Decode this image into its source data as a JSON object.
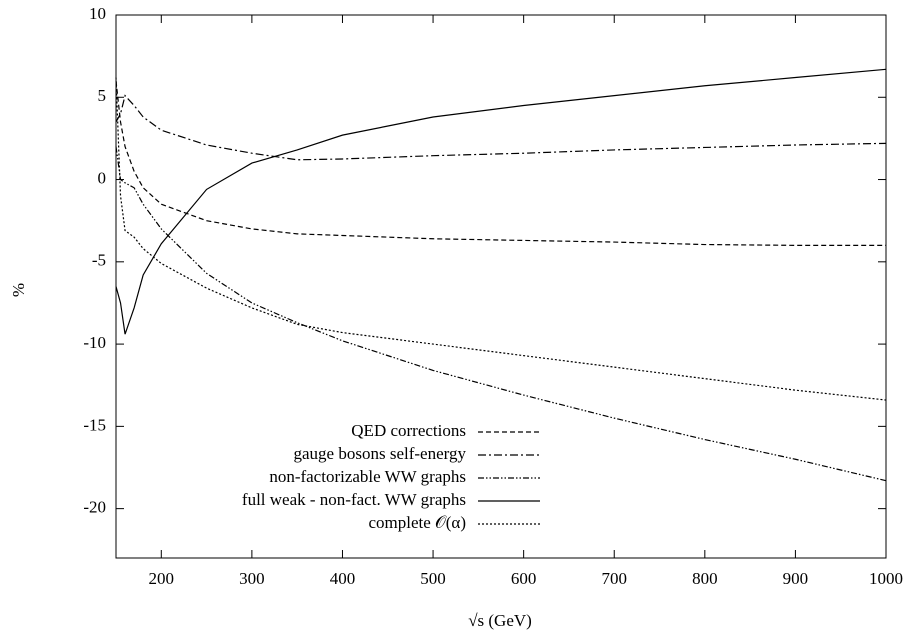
{
  "chart_data": {
    "type": "line",
    "x_label": "√s (GeV)",
    "y_label": "%",
    "x": [
      150,
      155,
      160,
      170,
      180,
      200,
      250,
      300,
      350,
      400,
      500,
      600,
      700,
      800,
      900,
      1000
    ],
    "series": [
      {
        "name": "QED corrections",
        "color": "#000000",
        "dash": "5,3",
        "values": [
          6,
          3.5,
          2,
          0.5,
          -0.5,
          -1.5,
          -2.5,
          -3.0,
          -3.3,
          -3.4,
          -3.6,
          -3.7,
          -3.8,
          -3.95,
          -4.0,
          -4.0
        ]
      },
      {
        "name": "gauge bosons self-energy",
        "color": "#000000",
        "dash": "8,3,2,3",
        "values": [
          3.5,
          4,
          5.1,
          4.5,
          3.8,
          3.0,
          2.1,
          1.6,
          1.2,
          1.25,
          1.45,
          1.6,
          1.8,
          1.95,
          2.1,
          2.2
        ]
      },
      {
        "name": "non-factorizable WW graphs",
        "color": "#000000",
        "dash": "6,2,1.5,2,1.5,2",
        "values": [
          2,
          0,
          -0.2,
          -0.5,
          -1.5,
          -3,
          -5.7,
          -7.5,
          -8.7,
          -9.8,
          -11.6,
          -13.1,
          -14.5,
          -15.8,
          -17.0,
          -18.3
        ]
      },
      {
        "name": "full weak - non-fact. WW graphs",
        "color": "#000000",
        "dash": "none",
        "values": [
          -6.5,
          -7.5,
          -9.4,
          -7.8,
          -5.8,
          -3.9,
          -0.6,
          1.0,
          1.8,
          2.7,
          3.8,
          4.5,
          5.1,
          5.7,
          6.2,
          6.7
        ]
      },
      {
        "name": "complete 𝒪(α)",
        "color": "#000000",
        "dash": "2,2",
        "values": [
          6.2,
          -1,
          -3.1,
          -3.5,
          -4.2,
          -5.1,
          -6.6,
          -7.8,
          -8.8,
          -9.3,
          -10.0,
          -10.7,
          -11.4,
          -12.1,
          -12.8,
          -13.4
        ]
      }
    ],
    "xlim": [
      150,
      1000
    ],
    "ylim": [
      -23,
      10
    ],
    "xticks": [
      200,
      300,
      400,
      500,
      600,
      700,
      800,
      900,
      1000
    ],
    "yticks": [
      -20,
      -15,
      -10,
      -5,
      0,
      5,
      10
    ]
  }
}
